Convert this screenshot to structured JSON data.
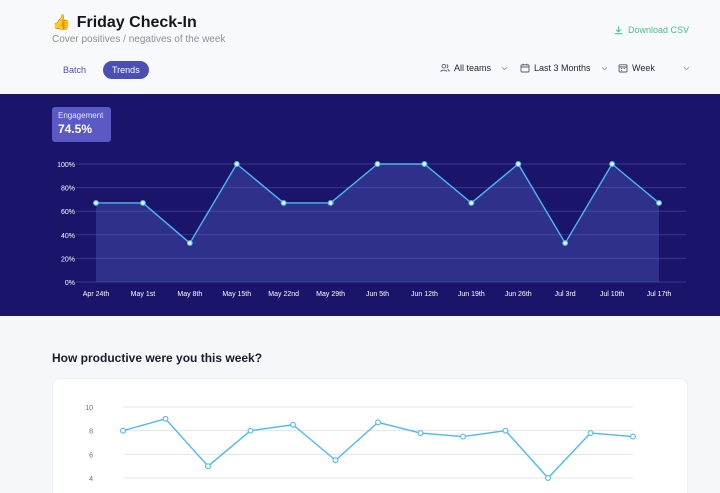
{
  "header": {
    "icon": "thumbs-up-icon",
    "emoji": "👍",
    "title": "Friday Check-In",
    "subtitle": "Cover positives / negatives of the week",
    "download_label": "Download CSV"
  },
  "view_toggle": {
    "batch_label": "Batch",
    "trends_label": "Trends",
    "active": "Trends"
  },
  "filters": {
    "teams_label": "All teams",
    "range_label": "Last 3 Months",
    "period_label": "Week"
  },
  "colors": {
    "accent": "#4b4eb3",
    "panel_bg": "#1a146b",
    "line": "#4fb8ef",
    "download": "#46c18b"
  },
  "engagement_badge": {
    "label": "Engagement",
    "value": "74.5%"
  },
  "productive": {
    "title": "How productive were you this week?"
  },
  "chart_data": [
    {
      "type": "area",
      "categories": [
        "Apr 24th",
        "May 1st",
        "May 8th",
        "May 15th",
        "May 22nd",
        "May 29th",
        "Jun 5th",
        "Jun 12th",
        "Jun 19th",
        "Jun 26th",
        "Jul 3rd",
        "Jul 10th",
        "Jul 17th"
      ],
      "series": [
        {
          "values": [
            67,
            67,
            33,
            100,
            67,
            67,
            100,
            100,
            67,
            100,
            33,
            100,
            67
          ]
        }
      ],
      "ylim": [
        0,
        100
      ],
      "yticks": [
        "0%",
        "20%",
        "40%",
        "60%",
        "80%",
        "100%"
      ],
      "grid": true
    },
    {
      "type": "line",
      "categories": [
        "",
        "",
        "",
        "",
        "",
        "",
        "",
        "",
        "",
        "",
        "",
        "",
        ""
      ],
      "series": [
        {
          "values": [
            8.0,
            9.0,
            5.0,
            8.0,
            8.5,
            5.5,
            8.7,
            7.8,
            7.5,
            8.0,
            4.0,
            7.8,
            7.5
          ]
        }
      ],
      "ylim": [
        4,
        10
      ],
      "yticks": [
        "4",
        "6",
        "8",
        "10"
      ],
      "grid": true
    }
  ]
}
